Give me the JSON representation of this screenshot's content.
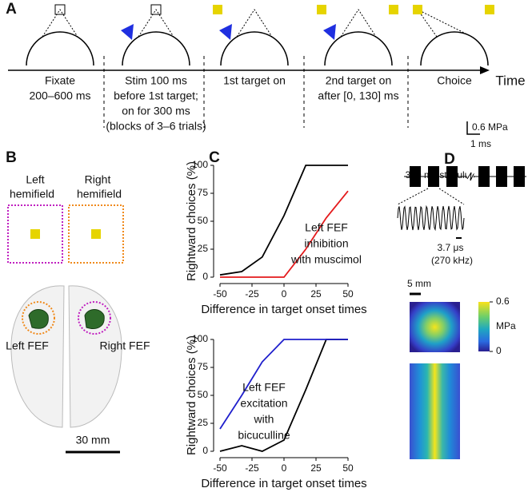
{
  "panel_labels": [
    "A",
    "B",
    "C",
    "D"
  ],
  "timeline": {
    "axis_label": "Time",
    "stages": [
      [
        "Fixate",
        "200–600 ms"
      ],
      [
        "Stim 100 ms",
        "before 1st target;",
        "on for 300 ms",
        "(blocks of 3–6 trials)"
      ],
      [
        "1st target on"
      ],
      [
        "2nd target on",
        "after [0, 130] ms"
      ],
      [
        "Choice"
      ]
    ]
  },
  "hemifields": {
    "left": [
      "Left",
      "hemifield"
    ],
    "right": [
      "Right",
      "hemifield"
    ]
  },
  "brain": {
    "left_label": "Left FEF",
    "right_label": "Right FEF",
    "scale": "30 mm"
  },
  "chart_data": [
    {
      "type": "line",
      "xlabel": "Difference in target onset times",
      "ylabel": "Rightward choices (%)",
      "x": [
        -50,
        -33,
        -17,
        0,
        17,
        33,
        50
      ],
      "xlim": [
        -50,
        50
      ],
      "xticks": [
        -50,
        -25,
        0,
        25,
        50
      ],
      "ylim": [
        0,
        100
      ],
      "yticks": [
        0,
        25,
        50,
        75,
        100
      ],
      "series": [
        {
          "name": null,
          "color": "#000000",
          "values": [
            2,
            5,
            18,
            55,
            100,
            100,
            100
          ]
        },
        {
          "name": null,
          "color": "#e41a1c",
          "values": [
            0,
            0,
            0,
            0,
            25,
            53,
            77
          ]
        }
      ],
      "annotation": [
        "Left FEF",
        "inhibition",
        "with muscimol"
      ],
      "annotation_color": "#e41a1c"
    },
    {
      "type": "line",
      "xlabel": "Difference in target onset times",
      "ylabel": "Rightward choices (%)",
      "x": [
        -50,
        -33,
        -17,
        0,
        17,
        33,
        50
      ],
      "xlim": [
        -50,
        50
      ],
      "xticks": [
        -50,
        -25,
        0,
        25,
        50
      ],
      "ylim": [
        0,
        100
      ],
      "yticks": [
        0,
        25,
        50,
        75,
        100
      ],
      "series": [
        {
          "name": null,
          "color": "#000000",
          "values": [
            0,
            5,
            0,
            10,
            55,
            100,
            100
          ]
        },
        {
          "name": null,
          "color": "#1f1fcc",
          "values": [
            20,
            50,
            80,
            100,
            100,
            100,
            100
          ]
        }
      ],
      "annotation": [
        "Left FEF",
        "excitation",
        "with",
        "bicuculline"
      ],
      "annotation_color": "#1f1fcc"
    }
  ],
  "stimulus": {
    "title": "300 ms stimulus",
    "scale_amp": "0.6 MPa",
    "scale_time": "1 ms",
    "period": "3.7 μs",
    "frequency": "(270 kHz)",
    "scale_space": "5 mm",
    "colorbar_label": "MPa",
    "colorbar_ticks": [
      0.6,
      0
    ]
  }
}
